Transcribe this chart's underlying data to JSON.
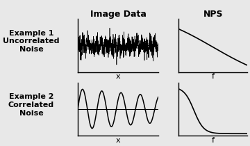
{
  "title_image_data": "Image Data",
  "title_nps": "NPS",
  "label_ex1": "Example 1\nUncorrelated\nNoise",
  "label_ex2": "Example 2\nCorrelated\nNoise",
  "xlabel_x": "x",
  "xlabel_f": "f",
  "line_color": "#000000",
  "figure_face_color": "#e8e8e8",
  "plot_face_color": "#e8e8e8",
  "title_fontsize": 9,
  "label_fontsize": 8,
  "axis_label_fontsize": 8,
  "title_fontweight": "bold",
  "label_fontweight": "bold"
}
